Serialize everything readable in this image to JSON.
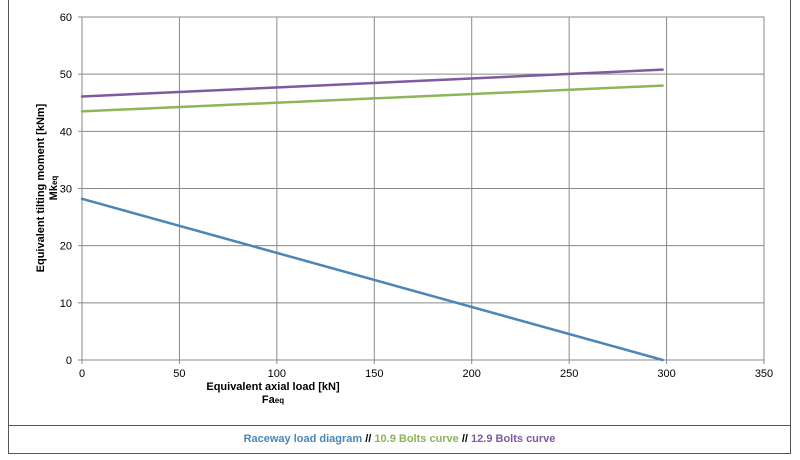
{
  "chart_data": {
    "type": "line",
    "xlabel": "Equivalent axial load [kN]",
    "xlabel_symbol": "Fa",
    "xlabel_sub": "eq",
    "ylabel": "Equivalent tilting moment [kNm]",
    "ylabel_symbol": "Mk",
    "ylabel_sub": "eq",
    "xlim": [
      0,
      350
    ],
    "ylim": [
      0,
      60
    ],
    "x_ticks": [
      "0",
      "50",
      "100",
      "150",
      "200",
      "250",
      "300",
      "350"
    ],
    "y_ticks": [
      "0",
      "10",
      "20",
      "30",
      "40",
      "50",
      "60"
    ],
    "grid": true,
    "legend_position": "bottom",
    "legend_separator": "//",
    "series": [
      {
        "name": "Raceway load diagram",
        "color": "#4a86b8",
        "x": [
          0,
          298
        ],
        "y": [
          28.2,
          0
        ]
      },
      {
        "name": "10.9 Bolts curve",
        "color": "#8db55a",
        "x": [
          0,
          298
        ],
        "y": [
          43.5,
          48.0
        ]
      },
      {
        "name": "12.9 Bolts curve",
        "color": "#7e5a9e",
        "x": [
          0,
          298
        ],
        "y": [
          46.1,
          50.8
        ]
      }
    ]
  }
}
